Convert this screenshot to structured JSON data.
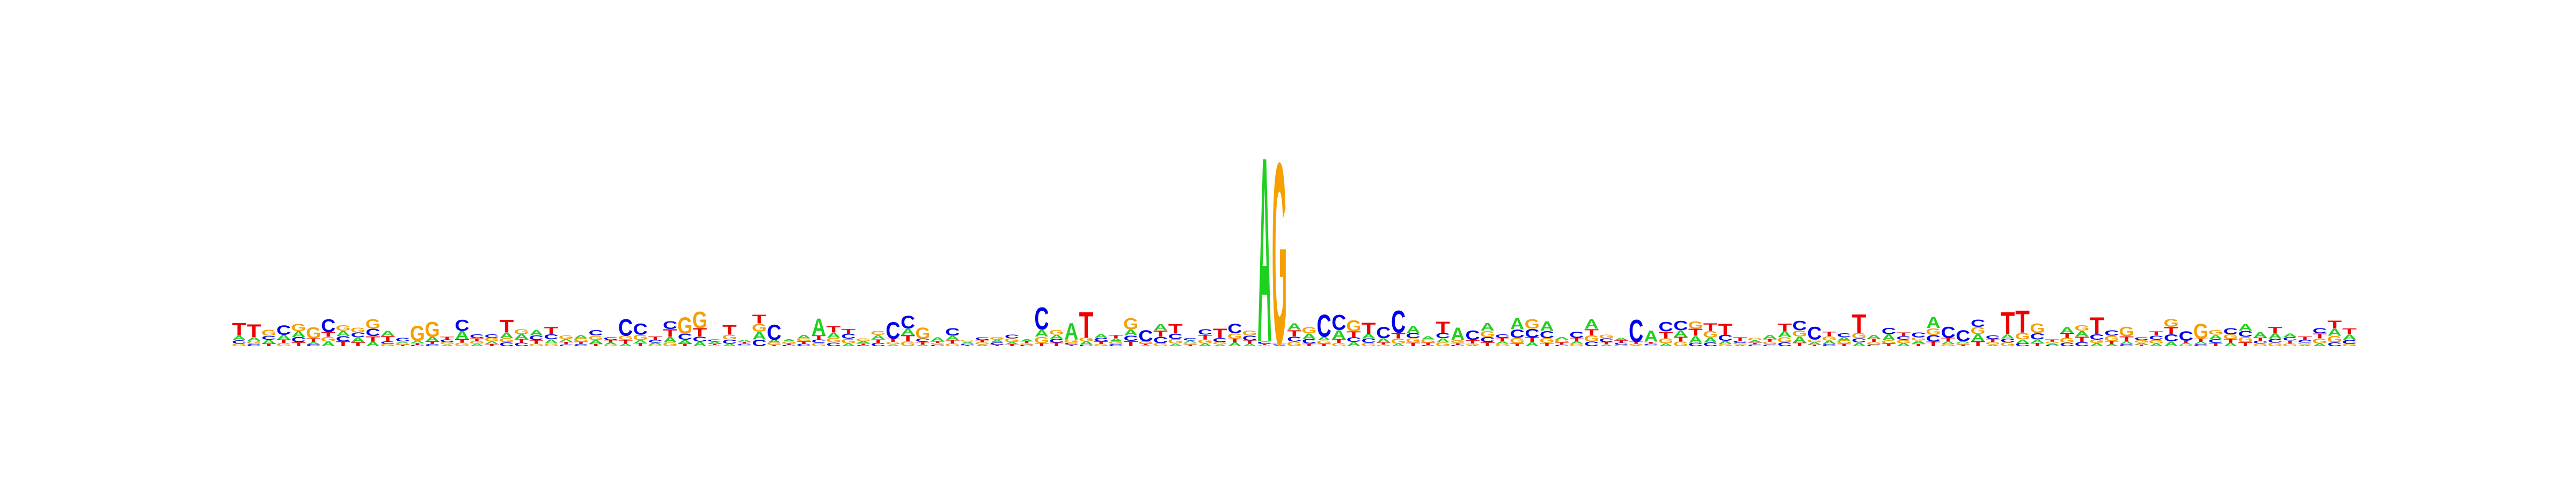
{
  "chart_data": {
    "type": "sequence_logo",
    "alphabet": [
      "A",
      "C",
      "G",
      "T"
    ],
    "colors": {
      "A": "#1fd11f",
      "C": "#0000ee",
      "G": "#f5a000",
      "T": "#ee0000"
    },
    "ylim": [
      0,
      2
    ],
    "length": 143,
    "seed_positions": [
      {
        "i": 0,
        "top": "T",
        "h": 0.07
      },
      {
        "i": 1,
        "top": "T",
        "h": 0.07
      },
      {
        "i": 3,
        "top": "C",
        "h": 0.05
      },
      {
        "i": 5,
        "top": "G",
        "h": 0.06
      },
      {
        "i": 6,
        "top": "C",
        "h": 0.07
      },
      {
        "i": 9,
        "top": "G",
        "h": 0.05
      },
      {
        "i": 12,
        "top": "G",
        "h": 0.08
      },
      {
        "i": 13,
        "top": "G",
        "h": 0.08
      },
      {
        "i": 15,
        "top": "C",
        "h": 0.06
      },
      {
        "i": 18,
        "top": "T",
        "h": 0.07
      },
      {
        "i": 26,
        "top": "C",
        "h": 0.09
      },
      {
        "i": 27,
        "top": "C",
        "h": 0.06
      },
      {
        "i": 30,
        "top": "G",
        "h": 0.09
      },
      {
        "i": 31,
        "top": "G",
        "h": 0.09
      },
      {
        "i": 33,
        "top": "T",
        "h": 0.05
      },
      {
        "i": 36,
        "top": "C",
        "h": 0.08
      },
      {
        "i": 39,
        "top": "A",
        "h": 0.09
      },
      {
        "i": 44,
        "top": "C",
        "h": 0.09
      },
      {
        "i": 45,
        "top": "C",
        "h": 0.07
      },
      {
        "i": 46,
        "top": "G",
        "h": 0.06
      },
      {
        "i": 54,
        "top": "C",
        "h": 0.12
      },
      {
        "i": 56,
        "top": "A",
        "h": 0.09
      },
      {
        "i": 57,
        "top": "T",
        "h": 0.14
      },
      {
        "i": 60,
        "top": "G",
        "h": 0.06
      },
      {
        "i": 61,
        "top": "C",
        "h": 0.06
      },
      {
        "i": 63,
        "top": "T",
        "h": 0.05
      },
      {
        "i": 66,
        "top": "T",
        "h": 0.05
      },
      {
        "i": 67,
        "top": "C",
        "h": 0.05
      },
      {
        "i": 69,
        "top": "A",
        "h": 1.0
      },
      {
        "i": 70,
        "top": "G",
        "h": 0.98
      },
      {
        "i": 73,
        "top": "C",
        "h": 0.12
      },
      {
        "i": 74,
        "top": "C",
        "h": 0.08
      },
      {
        "i": 75,
        "top": "G",
        "h": 0.06
      },
      {
        "i": 76,
        "top": "T",
        "h": 0.06
      },
      {
        "i": 77,
        "top": "C",
        "h": 0.06
      },
      {
        "i": 78,
        "top": "C",
        "h": 0.12
      },
      {
        "i": 81,
        "top": "T",
        "h": 0.06
      },
      {
        "i": 82,
        "top": "A",
        "h": 0.07
      },
      {
        "i": 83,
        "top": "C",
        "h": 0.05
      },
      {
        "i": 86,
        "top": "A",
        "h": 0.06
      },
      {
        "i": 87,
        "top": "G",
        "h": 0.05
      },
      {
        "i": 88,
        "top": "A",
        "h": 0.05
      },
      {
        "i": 91,
        "top": "A",
        "h": 0.05
      },
      {
        "i": 94,
        "top": "C",
        "h": 0.12
      },
      {
        "i": 95,
        "top": "A",
        "h": 0.06
      },
      {
        "i": 96,
        "top": "C",
        "h": 0.05
      },
      {
        "i": 97,
        "top": "C",
        "h": 0.05
      },
      {
        "i": 100,
        "top": "T",
        "h": 0.06
      },
      {
        "i": 105,
        "top": "C",
        "h": 0.05
      },
      {
        "i": 106,
        "top": "C",
        "h": 0.07
      },
      {
        "i": 109,
        "top": "T",
        "h": 0.1
      },
      {
        "i": 114,
        "top": "A",
        "h": 0.06
      },
      {
        "i": 115,
        "top": "C",
        "h": 0.06
      },
      {
        "i": 116,
        "top": "C",
        "h": 0.06
      },
      {
        "i": 119,
        "top": "T",
        "h": 0.12
      },
      {
        "i": 120,
        "top": "T",
        "h": 0.12
      },
      {
        "i": 121,
        "top": "G",
        "h": 0.05
      },
      {
        "i": 125,
        "top": "T",
        "h": 0.09
      },
      {
        "i": 127,
        "top": "G",
        "h": 0.05
      },
      {
        "i": 131,
        "top": "C",
        "h": 0.05
      },
      {
        "i": 132,
        "top": "G",
        "h": 0.08
      }
    ]
  }
}
